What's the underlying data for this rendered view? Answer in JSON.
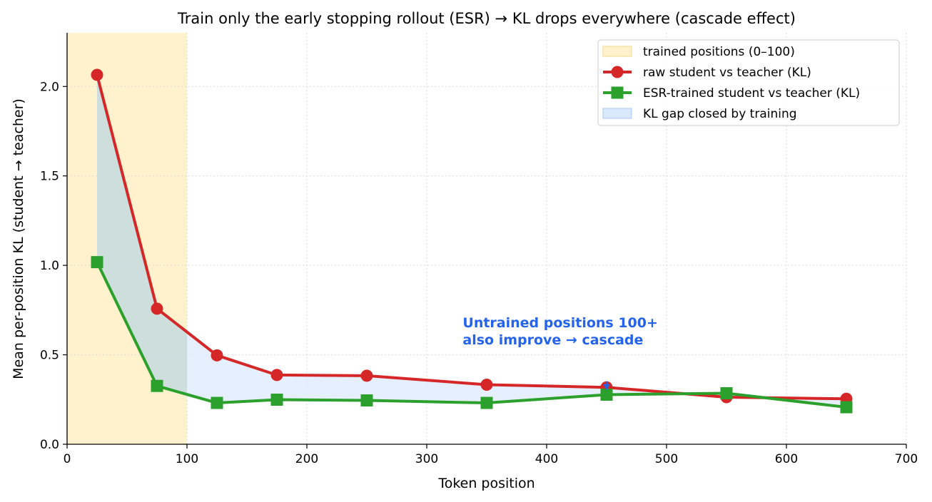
{
  "chart_data": {
    "type": "line",
    "title": "Train only the early stopping rollout (ESR) → KL drops everywhere (cascade effect)",
    "xlabel": "Token position",
    "ylabel": "Mean per-position KL (student → teacher)",
    "xlim": [
      0,
      700
    ],
    "ylim": [
      0,
      2.3
    ],
    "xticks": [
      "0",
      "100",
      "200",
      "300",
      "400",
      "500",
      "600",
      "700"
    ],
    "yticks": [
      "0.0",
      "0.5",
      "1.0",
      "1.5",
      "2.0"
    ],
    "grid": true,
    "legend_position": "top-right",
    "x": [
      25,
      75,
      125,
      175,
      250,
      350,
      450,
      550,
      650
    ],
    "series": [
      {
        "name": "raw student vs teacher (KL)",
        "color": "#d62728",
        "marker": "circle",
        "values": [
          2.065,
          0.758,
          0.497,
          0.387,
          0.383,
          0.333,
          0.318,
          0.263,
          0.254
        ]
      },
      {
        "name": "ESR-trained student vs teacher (KL)",
        "color": "#2ca02c",
        "marker": "square",
        "values": [
          1.018,
          0.326,
          0.231,
          0.249,
          0.245,
          0.231,
          0.277,
          0.285,
          0.207
        ]
      }
    ],
    "shaded_region": {
      "label": "trained positions (0–100)",
      "x_range": [
        0,
        100
      ],
      "color": "#fff2cc"
    },
    "fill_between": {
      "label": "KL gap closed by training",
      "color": "#dae8fc"
    },
    "annotation": {
      "lines": [
        "Untrained positions 100+",
        "also improve → cascade"
      ],
      "color": "#2563eb",
      "x": 330,
      "y": 0.65,
      "arrow_target": {
        "x": 450,
        "y": 0.32
      }
    }
  }
}
